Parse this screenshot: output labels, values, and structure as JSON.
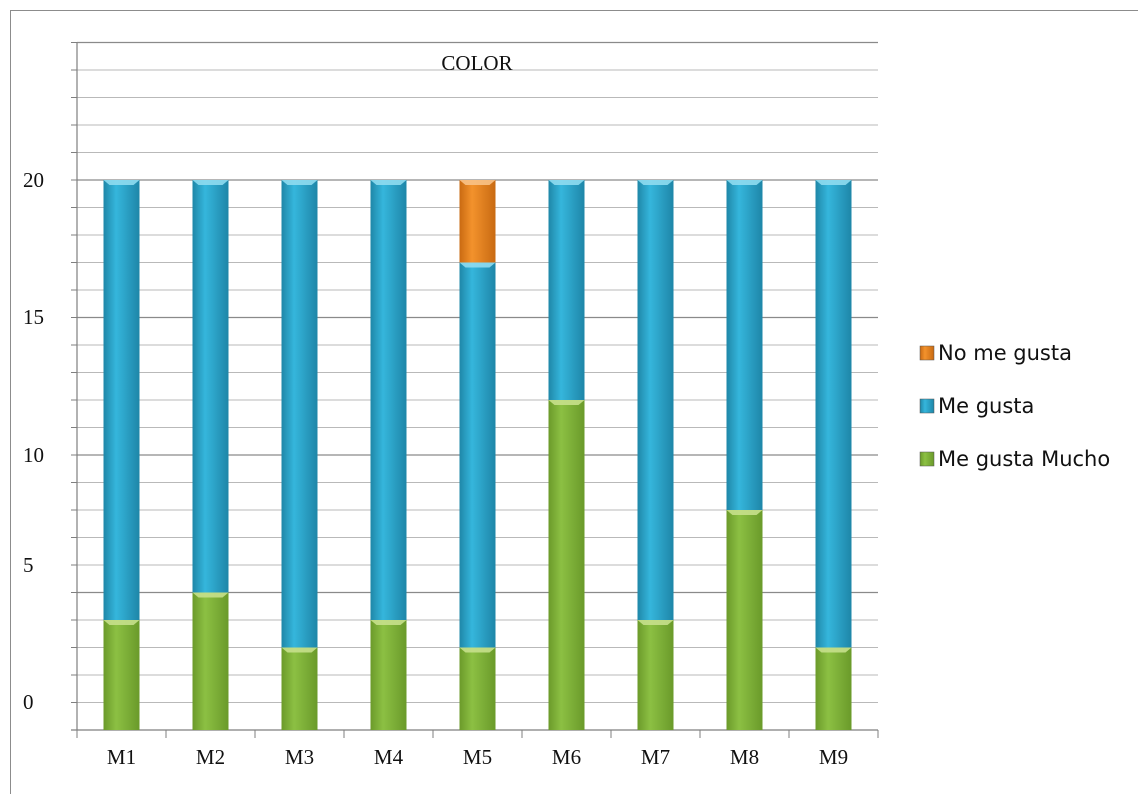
{
  "chart_data": {
    "type": "bar",
    "stacked": true,
    "title": "COLOR",
    "categories": [
      "M1",
      "M2",
      "M3",
      "M4",
      "M5",
      "M6",
      "M7",
      "M8",
      "M9"
    ],
    "series": [
      {
        "name": "Me gusta Mucho",
        "values": [
          4,
          5,
          3,
          4,
          3,
          12,
          4,
          8,
          3
        ],
        "color": "#7fb139"
      },
      {
        "name": "Me gusta",
        "values": [
          16,
          15,
          17,
          16,
          14,
          8,
          16,
          12,
          17
        ],
        "color": "#2aa0c4"
      },
      {
        "name": "No me gusta",
        "values": [
          0,
          0,
          0,
          0,
          3,
          0,
          0,
          0,
          0
        ],
        "color": "#e8841f"
      }
    ],
    "yticks": [
      "0",
      "5",
      "10",
      "15",
      "20"
    ],
    "ylim": [
      0,
      25
    ],
    "grid": true,
    "legend_position": "right",
    "legend_order": [
      "No me gusta",
      "Me gusta",
      "Me gusta Mucho"
    ]
  }
}
